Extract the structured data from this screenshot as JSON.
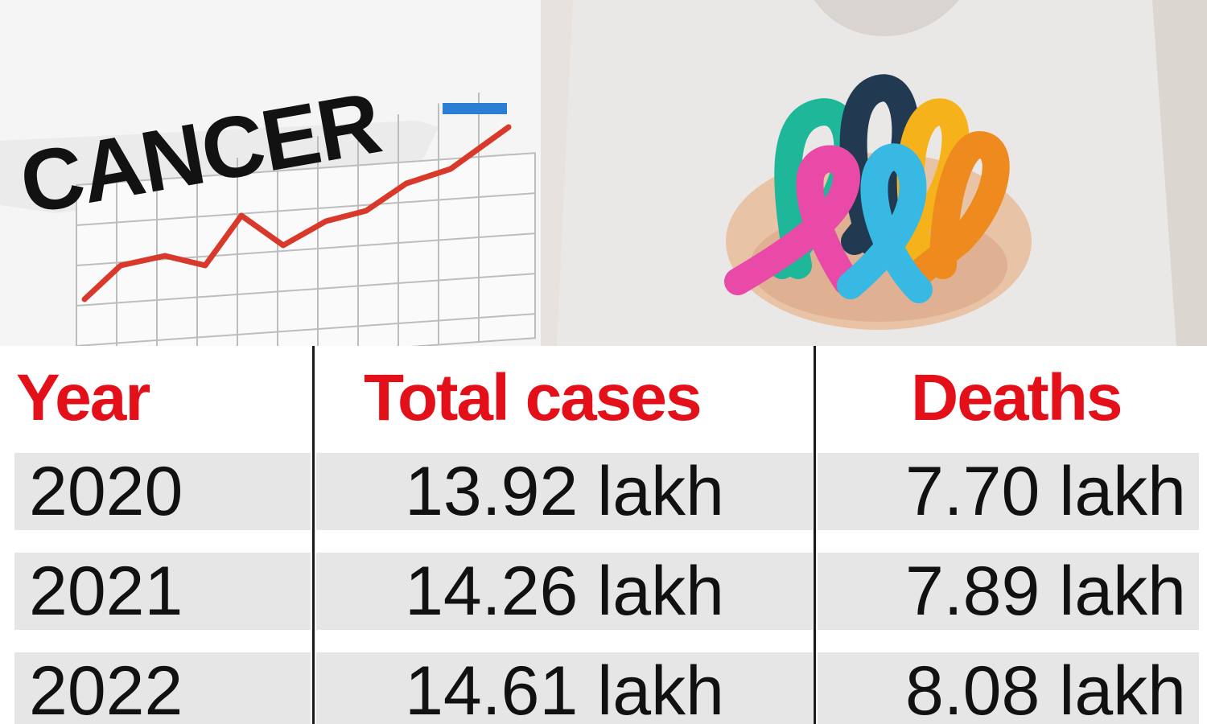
{
  "banner": {
    "chart_word": "CANCER"
  },
  "table": {
    "headers": [
      "Year",
      "Total cases",
      "Deaths"
    ],
    "rows": [
      [
        "2020",
        "13.92 lakh",
        "7.70 lakh"
      ],
      [
        "2021",
        "14.26 lakh",
        "7.89 lakh"
      ],
      [
        "2022",
        "14.61 lakh",
        "8.08 lakh"
      ]
    ]
  },
  "colors": {
    "header_text": "#e3101a",
    "row_band": "#e6e6e6",
    "divider": "#1a1a1a",
    "trend_line": "#d8392b",
    "legend_bar": "#2a7fd4",
    "ribbons": [
      "#1fb79a",
      "#213a52",
      "#f6b21b",
      "#ef8a1f",
      "#e94aa7",
      "#38b9e3"
    ]
  }
}
